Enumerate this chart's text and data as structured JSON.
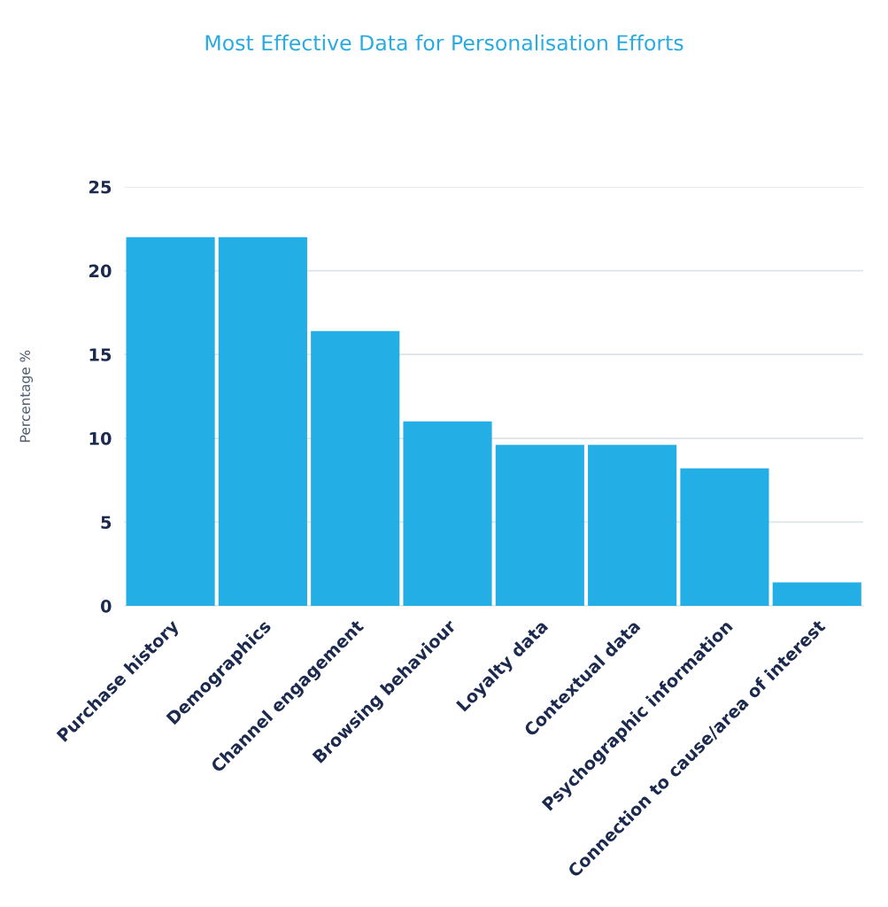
{
  "chart_data": {
    "type": "bar",
    "title": "Most Effective Data for Personalisation Efforts",
    "ylabel": "Percentage %",
    "categories": [
      "Purchase history",
      "Demographics",
      "Channel engagement",
      "Browsing behaviour",
      "Loyalty data",
      "Contextual data",
      "Psychographic information",
      "Connection to cause/area of interest"
    ],
    "values": [
      22,
      22,
      16.4,
      11,
      9.6,
      9.6,
      8.2,
      1.4
    ],
    "color": "#23aee5",
    "ylim": [
      0,
      25
    ],
    "yticks": [
      0,
      5,
      10,
      15,
      20,
      25
    ],
    "grid": "y",
    "legend": false
  }
}
